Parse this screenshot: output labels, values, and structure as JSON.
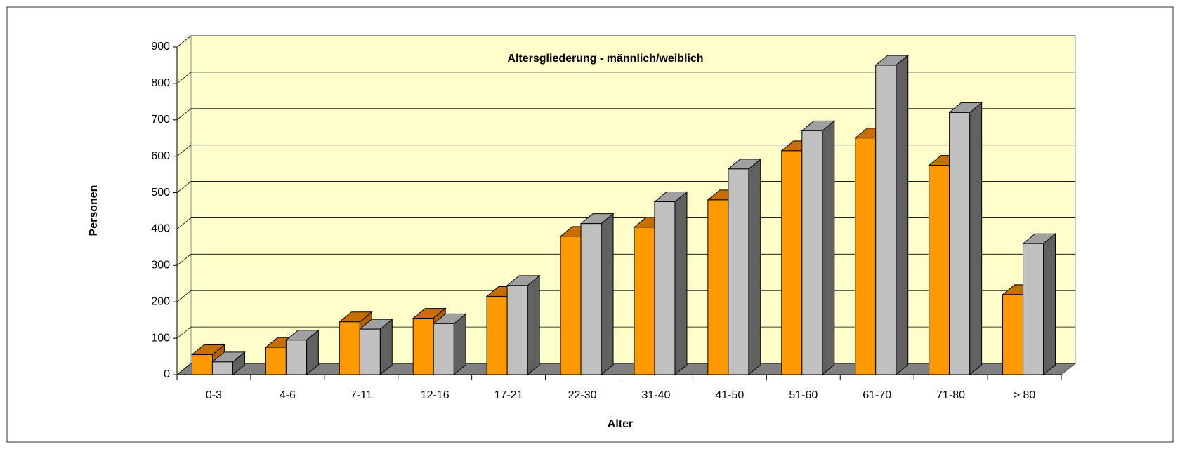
{
  "chart_data": {
    "type": "bar3d",
    "title": "Altersgliederung - männlich/weiblich",
    "x_label": "Alter",
    "y_label": "Personen",
    "categories": [
      "0-3",
      "4-6",
      "7-11",
      "12-16",
      "17-21",
      "22-30",
      "31-40",
      "41-50",
      "51-60",
      "61-70",
      "71-80",
      "> 80"
    ],
    "series": [
      {
        "color": "#FF9900",
        "top_color": "#C86E00",
        "side_color": "#B06000",
        "values": [
          55,
          75,
          145,
          155,
          215,
          380,
          405,
          480,
          615,
          650,
          575,
          220
        ]
      },
      {
        "color": "#C0C0C0",
        "top_color": "#A0A0A0",
        "side_color": "#606060",
        "values": [
          35,
          95,
          125,
          140,
          245,
          415,
          475,
          565,
          670,
          850,
          720,
          360
        ]
      }
    ],
    "ylim": [
      0,
      900
    ],
    "yticks": [
      0,
      100,
      200,
      300,
      400,
      500,
      600,
      700,
      800,
      900
    ],
    "grid": true,
    "wall_color": "#FFFFCC",
    "floor_color": "#808080"
  }
}
